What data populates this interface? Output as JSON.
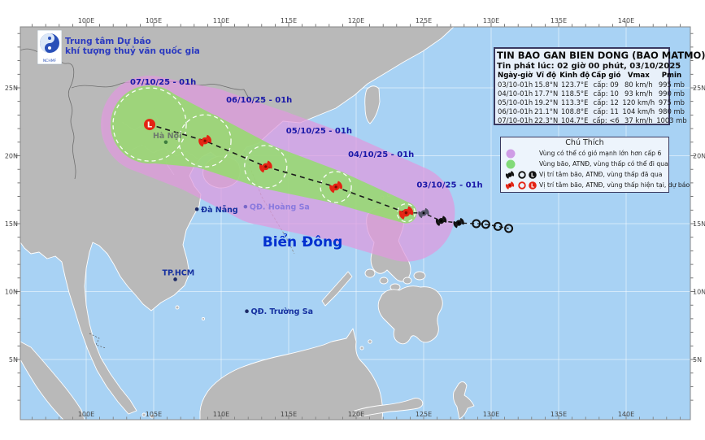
{
  "agency": {
    "line1": "Trung tâm Dự báo",
    "line2": "khí tượng thuỷ văn quốc gia",
    "logo_caption": "NCHMF"
  },
  "bulletin": {
    "title": "TIN BAO GAN BIEN DONG (BAO MATMO)-",
    "issued": "Tin phát lúc: 02 giờ 00 phút, 03/10/2025",
    "columns": [
      "Ngày-giờ",
      "Vĩ độ",
      "Kinh độ",
      "Cấp gió",
      "Vmax",
      "Pmin"
    ],
    "rows": [
      [
        "03/10-01h",
        "15.8°N",
        "123.7°E",
        "cấp: 09",
        "80 km/h",
        "995 mb"
      ],
      [
        "04/10-01h",
        "17.7°N",
        "118.5°E",
        "cấp: 10",
        "93 km/h",
        "990 mb"
      ],
      [
        "05/10-01h",
        "19.2°N",
        "113.3°E",
        "cấp: 12",
        "120 km/h",
        "975 mb"
      ],
      [
        "06/10-01h",
        "21.1°N",
        "108.8°E",
        "cấp: 11",
        "104 km/h",
        "980 mb"
      ],
      [
        "07/10-01h",
        "22.3°N",
        "104.7°E",
        "cấp: <6",
        "37 km/h",
        "1003 mb"
      ]
    ]
  },
  "legend": {
    "title": "Chú Thích",
    "items": [
      {
        "symbol": "purple-dot",
        "label": "Vùng có thể có gió mạnh lớn hơn cấp 6"
      },
      {
        "symbol": "green-dot",
        "label": "Vùng bão, ATNĐ, vùng thấp có thể đi qua"
      },
      {
        "symbol": "past-markers",
        "label": "Vị trí tâm bão, ATNĐ, vùng thấp đã qua"
      },
      {
        "symbol": "current-markers",
        "label": "Vị trí tâm bão, ATNĐ, vùng thấp hiện tại, dự báo"
      }
    ]
  },
  "colors": {
    "sea": "#a8d2f4",
    "land": "#b9b9b9",
    "purple_zone": "#e09adf",
    "green_zone": "#8fe263",
    "purple_legend": "#cf9ce6",
    "green_legend": "#82da78",
    "track": "#1a1a1a",
    "date_label": "#1a18a8",
    "current_symbol": "#e42313",
    "past_symbol": "#111111",
    "faded_symbol": "#55556a",
    "sea_label": "#0030cf",
    "city_label": "#15309f",
    "muted_label": "#6e7a6e",
    "violet_label": "#8a7ade"
  },
  "map": {
    "sea_label": "Biển Đông",
    "axis": {
      "lon_labels": [
        "100E",
        "105E",
        "110E",
        "115E",
        "120E",
        "125E",
        "130E",
        "135E",
        "140E"
      ],
      "lat_labels": [
        "25N",
        "20N",
        "15N",
        "10N",
        "5N"
      ]
    },
    "places": [
      {
        "name": "Hà Nội",
        "lat": 21.0,
        "lon": 105.9,
        "style": "muted",
        "label_pos": "above"
      },
      {
        "name": "Đà Nẵng",
        "lat": 16.06,
        "lon": 108.2,
        "style": "city",
        "label_pos": "right"
      },
      {
        "name": "TP.HCM",
        "lat": 10.9,
        "lon": 106.6,
        "style": "city",
        "label_pos": "above"
      },
      {
        "name": "QĐ. Hoàng Sa",
        "lat": 16.25,
        "lon": 111.8,
        "style": "violet",
        "label_pos": "right"
      },
      {
        "name": "QĐ. Trường Sa",
        "lat": 8.55,
        "lon": 111.9,
        "style": "city",
        "label_pos": "right"
      }
    ],
    "forecast": [
      {
        "date": "03/10/25 - 01h",
        "lat": 15.8,
        "lon": 123.7,
        "marker": "storm-current",
        "r_green": 13,
        "r_purple": 60,
        "r_circle": 11
      },
      {
        "date": "04/10/25 - 01h",
        "lat": 17.7,
        "lon": 118.5,
        "marker": "storm",
        "r_green": 20,
        "r_purple": 66,
        "r_circle": 19
      },
      {
        "date": "05/10/25 - 01h",
        "lat": 19.2,
        "lon": 113.3,
        "marker": "storm",
        "r_green": 27,
        "r_purple": 72,
        "r_circle": 26
      },
      {
        "date": "06/10/25 - 01h",
        "lat": 21.1,
        "lon": 108.8,
        "marker": "storm",
        "r_green": 34,
        "r_purple": 66,
        "r_circle": 32
      },
      {
        "date": "07/10/25 - 01h",
        "lat": 22.3,
        "lon": 104.7,
        "marker": "low",
        "r_green": 48,
        "r_purple": 60,
        "r_circle": 45
      }
    ],
    "past": [
      {
        "lat": 15.78,
        "lon": 125.0,
        "marker": "storm-faded"
      },
      {
        "lat": 15.2,
        "lon": 126.3,
        "marker": "storm-past"
      },
      {
        "lat": 15.05,
        "lon": 127.6,
        "marker": "storm-past"
      },
      {
        "lat": 15.0,
        "lon": 128.9,
        "marker": "circle"
      },
      {
        "lat": 14.95,
        "lon": 129.6,
        "marker": "circle"
      },
      {
        "lat": 14.8,
        "lon": 130.5,
        "marker": "circle"
      },
      {
        "lat": 14.65,
        "lon": 131.3,
        "marker": "circle"
      }
    ]
  }
}
